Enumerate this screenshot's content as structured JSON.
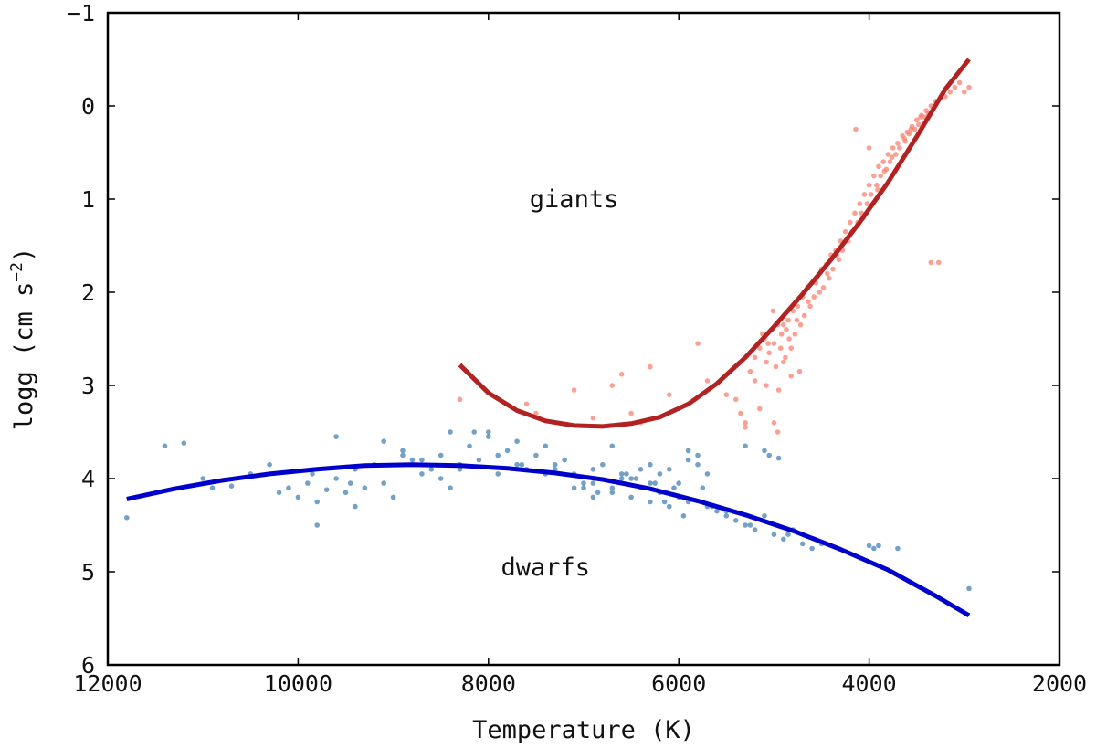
{
  "chart_data": {
    "type": "scatter",
    "title": "",
    "xlabel": "Temperature (K)",
    "ylabel_main": "logg (cm s",
    "ylabel_exp": "−2",
    "ylabel_close": ")",
    "xlim": [
      12000,
      2000
    ],
    "ylim": [
      6,
      -1
    ],
    "x_inverted": true,
    "y_inverted": true,
    "grid": false,
    "xticks": [
      12000,
      10000,
      8000,
      6000,
      4000,
      2000
    ],
    "xtick_labels": [
      "12000",
      "10000",
      "8000",
      "6000",
      "4000",
      "2000"
    ],
    "yticks": [
      -1,
      0,
      1,
      2,
      3,
      4,
      5,
      6
    ],
    "ytick_labels": [
      "−1",
      "0",
      "1",
      "2",
      "3",
      "4",
      "5",
      "6"
    ],
    "annotations": [
      {
        "text": "giants",
        "x": 7100,
        "y": 1.0
      },
      {
        "text": "dwarfs",
        "x": 7400,
        "y": 4.95
      }
    ],
    "series": [
      {
        "name": "giants fit",
        "kind": "line",
        "color": "#b22222",
        "x": [
          8300,
          8000,
          7700,
          7400,
          7100,
          6800,
          6500,
          6200,
          5900,
          5600,
          5300,
          5000,
          4700,
          4400,
          4100,
          3800,
          3500,
          3200,
          2950
        ],
        "y": [
          2.78,
          3.08,
          3.27,
          3.38,
          3.43,
          3.44,
          3.41,
          3.34,
          3.2,
          2.98,
          2.7,
          2.37,
          2.02,
          1.65,
          1.25,
          0.82,
          0.33,
          -0.18,
          -0.5
        ]
      },
      {
        "name": "dwarfs fit",
        "kind": "line",
        "color": "#0000cc",
        "x": [
          11800,
          11300,
          10800,
          10300,
          9800,
          9300,
          8800,
          8300,
          7800,
          7300,
          6800,
          6300,
          5800,
          5300,
          4800,
          4300,
          3800,
          3300,
          2950
        ],
        "y": [
          4.22,
          4.11,
          4.02,
          3.95,
          3.9,
          3.86,
          3.85,
          3.86,
          3.89,
          3.94,
          4.01,
          4.11,
          4.24,
          4.39,
          4.56,
          4.76,
          4.98,
          5.26,
          5.47
        ]
      },
      {
        "name": "giants",
        "kind": "scatter",
        "color": "#fa8072",
        "x": [
          8300,
          7600,
          7500,
          7100,
          6900,
          6700,
          6600,
          6500,
          6400,
          6300,
          6100,
          5900,
          5800,
          5700,
          5500,
          5400,
          5350,
          5300,
          5250,
          5200,
          5150,
          5100,
          5080,
          5050,
          5020,
          5000,
          4980,
          4950,
          4920,
          4900,
          4880,
          4850,
          4820,
          4800,
          4780,
          4750,
          4720,
          4700,
          4680,
          4650,
          4620,
          4600,
          4580,
          4550,
          4520,
          4500,
          4480,
          4450,
          4420,
          4400,
          4380,
          4350,
          4320,
          4300,
          4280,
          4250,
          4220,
          4200,
          4180,
          4150,
          4120,
          4100,
          4080,
          4050,
          4020,
          4000,
          3980,
          3950,
          3920,
          3900,
          3880,
          3850,
          3820,
          3800,
          3780,
          3750,
          3720,
          3700,
          3680,
          3650,
          3620,
          3600,
          3580,
          3550,
          3520,
          3500,
          3480,
          3450,
          3420,
          3400,
          3380,
          3350,
          3320,
          3300,
          3270,
          3250,
          3200,
          3150,
          3100,
          3050,
          3000,
          2950,
          5120,
          5060,
          4960,
          4900,
          4840,
          5010,
          4930,
          4870,
          5200,
          5080,
          4760,
          4640,
          4560,
          4440,
          4340,
          4210,
          4060,
          3910,
          3840,
          3760,
          3630,
          3560,
          3460,
          4140,
          4000,
          3350,
          4960,
          5000,
          5300,
          5150,
          4820,
          4730
        ],
        "y": [
          3.15,
          3.2,
          3.3,
          3.05,
          3.35,
          3.0,
          2.88,
          3.3,
          3.4,
          2.8,
          3.1,
          3.2,
          2.55,
          2.95,
          3.1,
          3.15,
          3.3,
          3.45,
          2.85,
          2.95,
          2.6,
          2.5,
          2.75,
          2.65,
          2.4,
          2.55,
          2.8,
          3.05,
          2.45,
          2.35,
          2.7,
          2.3,
          2.6,
          2.2,
          2.45,
          2.15,
          2.35,
          2.05,
          2.25,
          1.95,
          2.15,
          1.9,
          2.05,
          1.85,
          2.0,
          1.75,
          1.95,
          1.7,
          1.85,
          1.6,
          1.75,
          1.55,
          1.65,
          1.45,
          1.55,
          1.35,
          1.45,
          1.25,
          1.35,
          1.15,
          1.25,
          1.05,
          1.15,
          0.95,
          1.05,
          0.85,
          0.95,
          0.75,
          0.85,
          0.65,
          0.75,
          0.6,
          0.68,
          0.52,
          0.6,
          0.45,
          0.52,
          0.4,
          0.45,
          0.32,
          0.38,
          0.28,
          0.3,
          0.22,
          0.25,
          0.15,
          0.2,
          0.1,
          0.12,
          0.05,
          0.08,
          0.0,
          0.02,
          -0.05,
          1.68,
          -0.08,
          -0.1,
          -0.15,
          -0.2,
          -0.25,
          -0.15,
          -0.2,
          2.45,
          2.55,
          2.35,
          2.75,
          2.5,
          2.2,
          2.6,
          2.4,
          2.7,
          3.0,
          2.3,
          2.1,
          1.9,
          1.8,
          1.6,
          1.4,
          1.2,
          0.9,
          0.7,
          0.55,
          0.35,
          0.25,
          0.12,
          0.25,
          0.45,
          1.68,
          3.5,
          3.4,
          3.4,
          3.25,
          2.9,
          2.85
        ]
      },
      {
        "name": "dwarfs",
        "kind": "scatter",
        "color": "#4682b4",
        "x": [
          11800,
          11400,
          11200,
          11000,
          10900,
          10700,
          10500,
          10300,
          10200,
          10000,
          9900,
          9800,
          9700,
          9600,
          9500,
          9400,
          9300,
          9200,
          9100,
          9000,
          8900,
          8800,
          8700,
          8600,
          8500,
          8400,
          8300,
          8200,
          8100,
          8000,
          7900,
          7800,
          7700,
          7600,
          7500,
          7400,
          7300,
          7200,
          7100,
          7000,
          6900,
          6800,
          6700,
          6600,
          6500,
          6400,
          6300,
          6200,
          6100,
          6000,
          5900,
          5800,
          5700,
          5600,
          5500,
          5400,
          5300,
          5200,
          5100,
          5000,
          4900,
          4800,
          4700,
          4600,
          4500,
          4000,
          3950,
          3900,
          3700,
          2950,
          9800,
          9400,
          9100,
          8700,
          8500,
          8300,
          8000,
          7700,
          7400,
          7100,
          6900,
          6700,
          6500,
          6300,
          6100,
          5900,
          5700,
          6600,
          6400,
          6200,
          6000,
          5800,
          6700,
          6300,
          5900,
          5500,
          10100,
          9600,
          8900,
          8400,
          7900,
          7300,
          6900,
          6450,
          6050,
          5650,
          5250,
          4850,
          9850,
          9450,
          8150,
          7650,
          6550,
          6250,
          5750,
          7000,
          6850,
          6150,
          5950,
          5300,
          5100,
          5050,
          4950
        ],
        "y": [
          4.42,
          3.65,
          3.62,
          4.0,
          4.1,
          4.08,
          3.95,
          3.85,
          4.15,
          4.2,
          4.05,
          4.25,
          4.12,
          3.55,
          4.15,
          3.9,
          4.1,
          3.85,
          3.6,
          4.2,
          3.75,
          3.8,
          3.95,
          3.9,
          3.75,
          4.1,
          3.85,
          3.65,
          3.8,
          3.55,
          3.95,
          3.7,
          3.6,
          3.9,
          3.75,
          3.65,
          3.85,
          3.8,
          3.95,
          4.05,
          3.9,
          3.85,
          4.1,
          3.95,
          4.0,
          4.1,
          4.05,
          4.15,
          3.9,
          4.2,
          4.25,
          3.85,
          4.3,
          4.35,
          4.4,
          4.45,
          4.5,
          4.55,
          4.4,
          4.6,
          4.65,
          4.55,
          4.7,
          4.75,
          4.7,
          4.72,
          4.75,
          4.72,
          4.75,
          5.18,
          4.5,
          4.3,
          4.05,
          3.8,
          4.0,
          3.9,
          3.5,
          3.85,
          3.95,
          4.1,
          4.05,
          4.15,
          4.2,
          4.25,
          4.3,
          3.7,
          3.95,
          4.0,
          3.9,
          3.95,
          4.05,
          3.75,
          3.65,
          3.85,
          3.8,
          4.35,
          4.1,
          4.0,
          3.7,
          3.5,
          3.75,
          3.9,
          4.2,
          4.0,
          4.1,
          4.3,
          4.5,
          4.6,
          3.95,
          4.05,
          3.5,
          3.85,
          3.95,
          4.05,
          4.1,
          4.1,
          4.15,
          4.25,
          4.4,
          3.65,
          3.7,
          3.75,
          3.78
        ]
      }
    ]
  }
}
